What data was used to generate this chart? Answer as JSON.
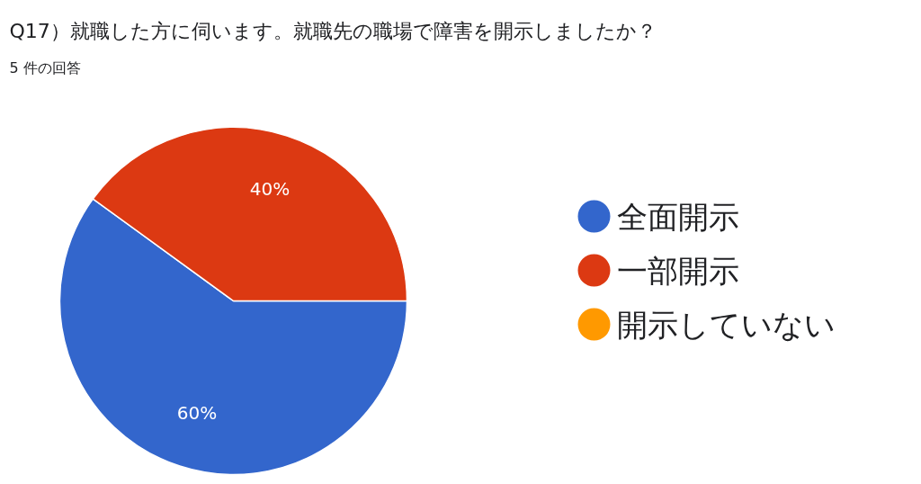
{
  "chart_data": {
    "type": "pie",
    "title": "Q17）就職した方に伺います。就職先の職場で障害を開示しましたか？",
    "subtitle": "5 件の回答",
    "categories": [
      "全面開示",
      "一部開示",
      "開示していない"
    ],
    "values": [
      60,
      40,
      0
    ],
    "colors": [
      "#3366cc",
      "#dc3912",
      "#ff9900"
    ],
    "value_labels": [
      "60%",
      "40%",
      null
    ],
    "legend": "right"
  }
}
